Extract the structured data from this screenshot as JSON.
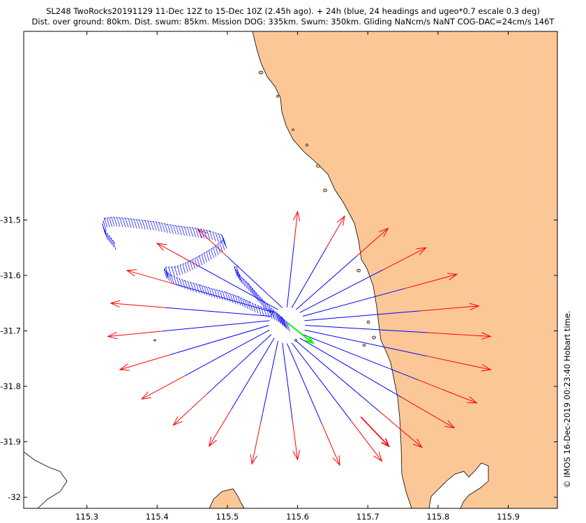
{
  "chart_data": {
    "type": "map",
    "title": "SL248 TwoRocks20191129 11-Dec 12Z to 15-Dec 10Z (2.45h ago). + 24h (blue, 24 headings and ugeo*0.7 escale 0.3 deg)",
    "subtitle": "Dist. over ground: 80km. Dist. swum: 85km. Mission DOG: 335km. Swum: 350km. Gliding NaNcm/s NaNT COG-DAC=24cm/s 146T",
    "credit": "© IMOS 16-Dec-2019 00:23:40 Hobart time.",
    "xlim": [
      115.21,
      115.97
    ],
    "ylim": [
      -32.02,
      -31.16
    ],
    "xticks": [
      115.3,
      115.4,
      115.5,
      115.6,
      115.7,
      115.8,
      115.9
    ],
    "xtick_labels": [
      "115.3",
      "115.4",
      "115.5",
      "115.6",
      "115.7",
      "115.8",
      "115.9"
    ],
    "yticks": [
      -31.5,
      -31.6,
      -31.7,
      -31.8,
      -31.9,
      -32.0
    ],
    "ytick_labels": [
      "-31.5",
      "-31.6",
      "-31.7",
      "-31.8",
      "-31.9",
      "-32"
    ],
    "land_color": "#fcc796",
    "heading_color": "#0000ff",
    "ugeo_color": "#ff0000",
    "current_color": "#00ff00",
    "headings": {
      "count": 24,
      "origin": [
        115.585,
        -31.69
      ],
      "start_deg_from_north": 0,
      "tips": [
        [
          115.6,
          -31.485
        ],
        [
          115.667,
          -31.493
        ],
        [
          115.729,
          -31.515
        ],
        [
          115.783,
          -31.55
        ],
        [
          115.827,
          -31.598
        ],
        [
          115.858,
          -31.655
        ],
        [
          115.875,
          -31.71
        ],
        [
          115.875,
          -31.77
        ],
        [
          115.855,
          -31.83
        ],
        [
          115.823,
          -31.875
        ],
        [
          115.777,
          -31.91
        ],
        [
          115.72,
          -31.935
        ],
        [
          115.66,
          -31.942
        ],
        [
          115.6,
          -31.932
        ],
        [
          115.535,
          -31.94
        ],
        [
          115.474,
          -31.908
        ],
        [
          115.423,
          -31.87
        ],
        [
          115.378,
          -31.823
        ],
        [
          115.347,
          -31.77
        ],
        [
          115.33,
          -31.71
        ],
        [
          115.334,
          -31.65
        ],
        [
          115.357,
          -31.591
        ],
        [
          115.4,
          -31.542
        ],
        [
          115.458,
          -31.517
        ]
      ]
    },
    "ugeo_arrow": {
      "from": [
        115.69,
        -31.855
      ],
      "to": [
        115.73,
        -31.908
      ]
    },
    "current_arrow": {
      "from": [
        115.585,
        -31.685
      ],
      "to": [
        115.622,
        -31.722
      ]
    },
    "track": [
      [
        115.585,
        -31.685
      ],
      [
        115.578,
        -31.676
      ],
      [
        115.57,
        -31.668
      ],
      [
        115.56,
        -31.662
      ],
      [
        115.548,
        -31.657
      ],
      [
        115.532,
        -31.648
      ],
      [
        115.515,
        -31.638
      ],
      [
        115.497,
        -31.63
      ],
      [
        115.478,
        -31.624
      ],
      [
        115.46,
        -31.617
      ],
      [
        115.44,
        -31.61
      ],
      [
        115.42,
        -31.6
      ],
      [
        115.41,
        -31.59
      ],
      [
        115.412,
        -31.585
      ],
      [
        115.425,
        -31.585
      ],
      [
        115.44,
        -31.578
      ],
      [
        115.46,
        -31.565
      ],
      [
        115.48,
        -31.55
      ],
      [
        115.495,
        -31.535
      ],
      [
        115.492,
        -31.527
      ],
      [
        115.475,
        -31.52
      ],
      [
        115.455,
        -31.515
      ],
      [
        115.435,
        -31.512
      ],
      [
        115.415,
        -31.508
      ],
      [
        115.395,
        -31.503
      ],
      [
        115.375,
        -31.5
      ],
      [
        115.355,
        -31.497
      ],
      [
        115.335,
        -31.495
      ],
      [
        115.325,
        -31.497
      ],
      [
        115.322,
        -31.508
      ],
      [
        115.326,
        -31.52
      ],
      [
        115.334,
        -31.532
      ],
      [
        115.34,
        -31.542
      ]
    ],
    "track2": [
      [
        115.58,
        -31.68
      ],
      [
        115.572,
        -31.67
      ],
      [
        115.563,
        -31.66
      ],
      [
        115.553,
        -31.648
      ],
      [
        115.542,
        -31.633
      ],
      [
        115.53,
        -31.615
      ],
      [
        115.518,
        -31.6
      ],
      [
        115.51,
        -31.585
      ],
      [
        115.516,
        -31.583
      ]
    ]
  }
}
